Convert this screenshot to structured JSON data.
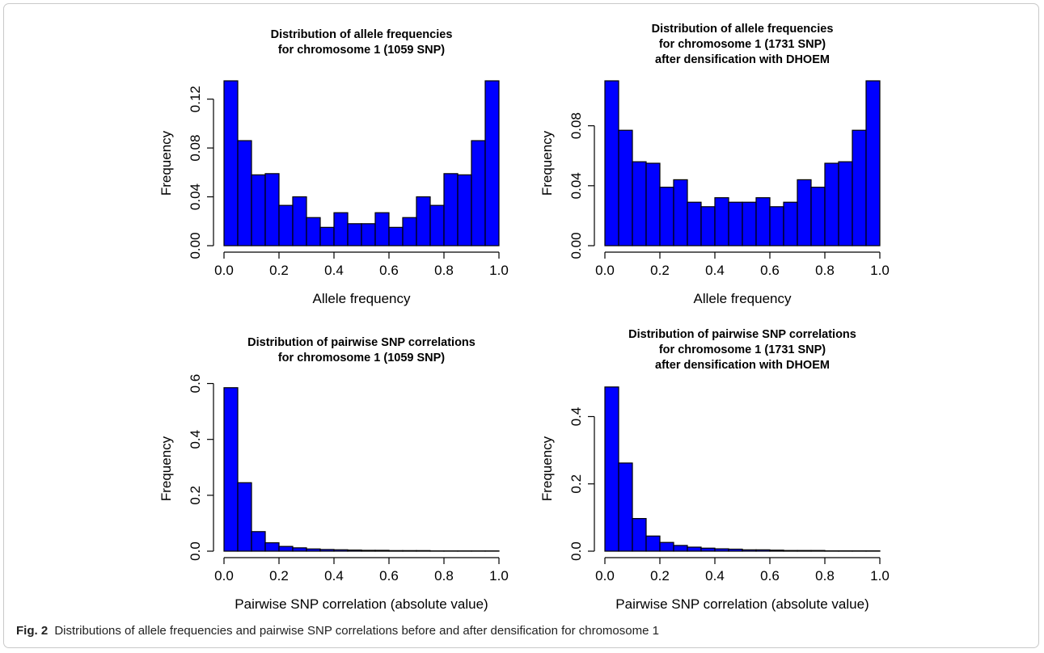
{
  "caption": {
    "label": "Fig. 2",
    "text": "Distributions of allele frequencies and pairwise SNP correlations before and after densification for chromosome 1"
  },
  "colors": {
    "bar_fill": "#0000ff",
    "bar_stroke": "#000000"
  },
  "chart_data": [
    {
      "type": "bar",
      "title": [
        "Distribution of allele frequencies",
        "for chromosome 1 (1059 SNP)"
      ],
      "xlabel": "Allele frequency",
      "ylabel": "Frequency",
      "xlim": [
        0,
        1
      ],
      "ylim": [
        0,
        0.135
      ],
      "xticks": [
        "0.0",
        "0.2",
        "0.4",
        "0.6",
        "0.8",
        "1.0"
      ],
      "yticks": [
        "0.00",
        "0.04",
        "0.08",
        "0.12"
      ],
      "bin_edges": [
        0,
        0.05,
        0.1,
        0.15,
        0.2,
        0.25,
        0.3,
        0.35,
        0.4,
        0.45,
        0.5,
        0.55,
        0.6,
        0.65,
        0.7,
        0.75,
        0.8,
        0.85,
        0.9,
        0.95,
        1.0
      ],
      "values": [
        0.135,
        0.086,
        0.058,
        0.059,
        0.033,
        0.04,
        0.023,
        0.015,
        0.027,
        0.018,
        0.018,
        0.027,
        0.015,
        0.023,
        0.04,
        0.033,
        0.059,
        0.058,
        0.086,
        0.135
      ]
    },
    {
      "type": "bar",
      "title": [
        "Distribution of allele frequencies",
        "for chromosome 1 (1731 SNP)",
        "after densification with DHOEM"
      ],
      "xlabel": "Allele frequency",
      "ylabel": "Frequency",
      "xlim": [
        0,
        1
      ],
      "ylim": [
        0,
        0.11
      ],
      "xticks": [
        "0.0",
        "0.2",
        "0.4",
        "0.6",
        "0.8",
        "1.0"
      ],
      "yticks": [
        "0.00",
        "0.04",
        "0.08"
      ],
      "bin_edges": [
        0,
        0.05,
        0.1,
        0.15,
        0.2,
        0.25,
        0.3,
        0.35,
        0.4,
        0.45,
        0.5,
        0.55,
        0.6,
        0.65,
        0.7,
        0.75,
        0.8,
        0.85,
        0.9,
        0.95,
        1.0
      ],
      "values": [
        0.11,
        0.077,
        0.056,
        0.055,
        0.039,
        0.044,
        0.029,
        0.026,
        0.032,
        0.029,
        0.029,
        0.032,
        0.026,
        0.029,
        0.044,
        0.039,
        0.055,
        0.056,
        0.077,
        0.11
      ]
    },
    {
      "type": "bar",
      "title": [
        "Distribution of pairwise SNP correlations",
        "for chromosome 1 (1059 SNP)"
      ],
      "xlabel": "Pairwise SNP correlation (absolute value)",
      "ylabel": "Frequency",
      "xlim": [
        0,
        1
      ],
      "ylim": [
        0,
        0.59
      ],
      "xticks": [
        "0.0",
        "0.2",
        "0.4",
        "0.6",
        "0.8",
        "1.0"
      ],
      "yticks": [
        "0.0",
        "0.2",
        "0.4",
        "0.6"
      ],
      "bin_edges": [
        0,
        0.05,
        0.1,
        0.15,
        0.2,
        0.25,
        0.3,
        0.35,
        0.4,
        0.45,
        0.5,
        0.55,
        0.6,
        0.65,
        0.7,
        0.75,
        0.8,
        0.85,
        0.9,
        0.95,
        1.0
      ],
      "values": [
        0.585,
        0.245,
        0.07,
        0.03,
        0.017,
        0.012,
        0.008,
        0.006,
        0.005,
        0.004,
        0.003,
        0.003,
        0.002,
        0.002,
        0.002,
        0.001,
        0.001,
        0.001,
        0.001,
        0.001
      ]
    },
    {
      "type": "bar",
      "title": [
        "Distribution of pairwise SNP correlations",
        "for chromosome 1 (1731 SNP)",
        "after densification with DHOEM"
      ],
      "xlabel": "Pairwise SNP correlation (absolute value)",
      "ylabel": "Frequency",
      "xlim": [
        0,
        1
      ],
      "ylim": [
        0,
        0.49
      ],
      "xticks": [
        "0.0",
        "0.2",
        "0.4",
        "0.6",
        "0.8",
        "1.0"
      ],
      "yticks": [
        "0.0",
        "0.2",
        "0.4"
      ],
      "bin_edges": [
        0,
        0.05,
        0.1,
        0.15,
        0.2,
        0.25,
        0.3,
        0.35,
        0.4,
        0.45,
        0.5,
        0.55,
        0.6,
        0.65,
        0.7,
        0.75,
        0.8,
        0.85,
        0.9,
        0.95,
        1.0
      ],
      "values": [
        0.488,
        0.262,
        0.097,
        0.045,
        0.026,
        0.017,
        0.012,
        0.009,
        0.007,
        0.006,
        0.004,
        0.004,
        0.003,
        0.002,
        0.002,
        0.002,
        0.001,
        0.001,
        0.001,
        0.001
      ]
    }
  ]
}
